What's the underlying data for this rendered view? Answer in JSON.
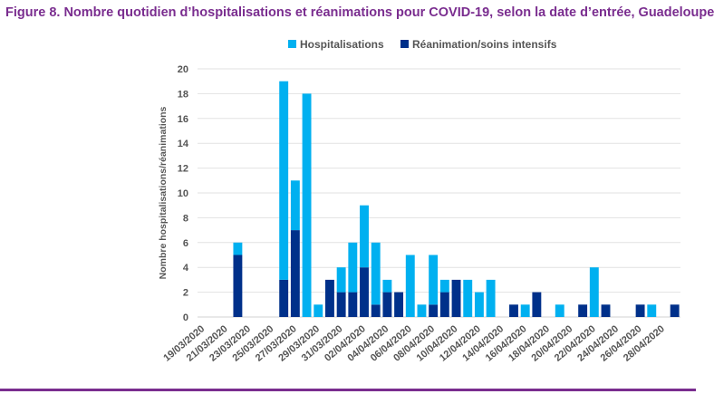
{
  "chart_data": {
    "type": "bar",
    "stacked": true,
    "title": "Figure 8. Nombre quotidien d’hospitalisations et réanimations pour COVID-19, selon la date d’entrée, Guadeloupe",
    "xlabel": "",
    "ylabel": "Nombre hospitalisations/réanimations",
    "ylim": [
      0,
      20
    ],
    "yticks": [
      0,
      2,
      4,
      6,
      8,
      10,
      12,
      14,
      16,
      18,
      20
    ],
    "grid": true,
    "legend_position": "top",
    "categories": [
      "19/03/2020",
      "20/03/2020",
      "21/03/2020",
      "22/03/2020",
      "23/03/2020",
      "24/03/2020",
      "25/03/2020",
      "26/03/2020",
      "27/03/2020",
      "28/03/2020",
      "29/03/2020",
      "30/03/2020",
      "31/03/2020",
      "01/04/2020",
      "02/04/2020",
      "03/04/2020",
      "04/04/2020",
      "05/04/2020",
      "06/04/2020",
      "07/04/2020",
      "08/04/2020",
      "09/04/2020",
      "10/04/2020",
      "11/04/2020",
      "12/04/2020",
      "13/04/2020",
      "14/04/2020",
      "15/04/2020",
      "16/04/2020",
      "17/04/2020",
      "18/04/2020",
      "19/04/2020",
      "20/04/2020",
      "21/04/2020",
      "22/04/2020",
      "23/04/2020",
      "24/04/2020",
      "25/04/2020",
      "26/04/2020",
      "27/04/2020",
      "28/04/2020",
      "29/04/2020"
    ],
    "tick_labels": [
      "19/03/2020",
      "21/03/2020",
      "23/03/2020",
      "25/03/2020",
      "27/03/2020",
      "29/03/2020",
      "31/03/2020",
      "02/04/2020",
      "04/04/2020",
      "06/04/2020",
      "08/04/2020",
      "10/04/2020",
      "12/04/2020",
      "14/04/2020",
      "16/04/2020",
      "18/04/2020",
      "20/04/2020",
      "22/04/2020",
      "24/04/2020",
      "26/04/2020",
      "28/04/2020"
    ],
    "series": [
      {
        "name": "Réanimation/soins intensifs",
        "color": "#00308a",
        "values": [
          0,
          0,
          0,
          5,
          0,
          0,
          0,
          3,
          7,
          0,
          0,
          3,
          2,
          2,
          4,
          1,
          2,
          2,
          0,
          0,
          1,
          2,
          3,
          0,
          0,
          0,
          0,
          1,
          0,
          2,
          0,
          0,
          0,
          1,
          0,
          1,
          0,
          0,
          1,
          0,
          0,
          1
        ]
      },
      {
        "name": "Hospitalisations",
        "color": "#00b0f0",
        "values": [
          0,
          0,
          0,
          1,
          0,
          0,
          0,
          16,
          4,
          18,
          1,
          0,
          2,
          4,
          5,
          5,
          1,
          0,
          5,
          1,
          4,
          1,
          0,
          3,
          2,
          3,
          0,
          0,
          1,
          0,
          0,
          1,
          0,
          0,
          4,
          0,
          0,
          0,
          0,
          1,
          0,
          0
        ]
      }
    ]
  }
}
